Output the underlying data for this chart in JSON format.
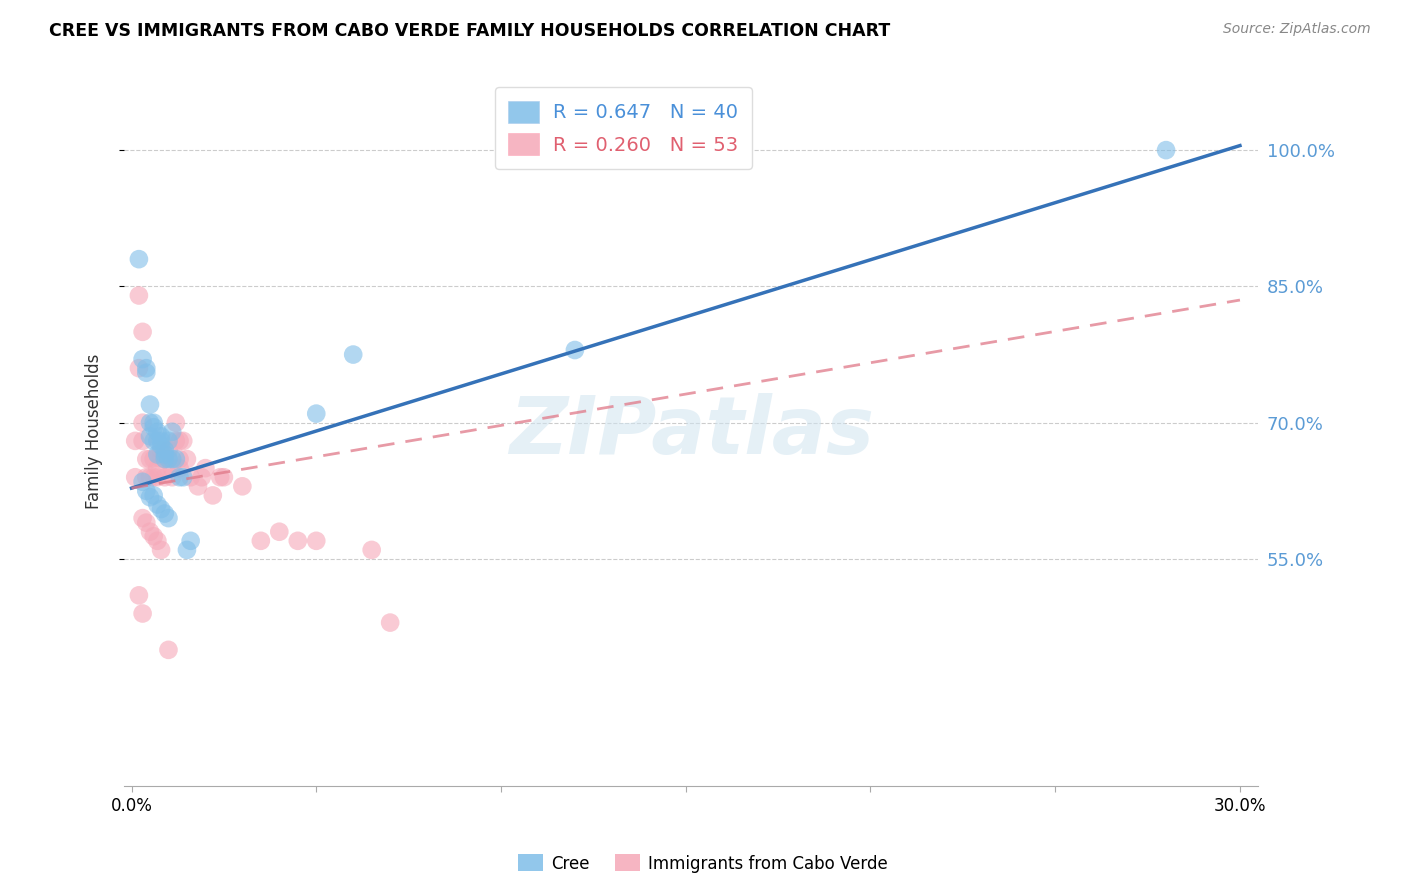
{
  "title": "CREE VS IMMIGRANTS FROM CABO VERDE FAMILY HOUSEHOLDS CORRELATION CHART",
  "source": "Source: ZipAtlas.com",
  "ylabel": "Family Households",
  "ytick_labels": [
    "55.0%",
    "70.0%",
    "85.0%",
    "100.0%"
  ],
  "ytick_values": [
    0.55,
    0.7,
    0.85,
    1.0
  ],
  "xtick_values": [
    0.0,
    0.05,
    0.1,
    0.15,
    0.2,
    0.25,
    0.3
  ],
  "xtick_labels": [
    "0.0%",
    "",
    "",
    "",
    "",
    "",
    "30.0%"
  ],
  "xmin": -0.002,
  "xmax": 0.305,
  "ymin": 0.3,
  "ymax": 1.08,
  "cree_R": 0.647,
  "cree_N": 40,
  "cabo_R": 0.26,
  "cabo_N": 53,
  "cree_color": "#7FBDE8",
  "cabo_color": "#F5A8B8",
  "cree_line_color": "#3572B8",
  "cabo_line_color": "#E07888",
  "watermark_text": "ZIPatlas",
  "cree_line_x0": 0.0,
  "cree_line_y0": 0.628,
  "cree_line_x1": 0.3,
  "cree_line_y1": 1.005,
  "cabo_line_x0": 0.0,
  "cabo_line_y0": 0.628,
  "cabo_line_x1": 0.3,
  "cabo_line_y1": 0.835,
  "cree_x": [
    0.002,
    0.003,
    0.004,
    0.004,
    0.005,
    0.005,
    0.005,
    0.006,
    0.006,
    0.006,
    0.007,
    0.007,
    0.007,
    0.008,
    0.008,
    0.008,
    0.009,
    0.009,
    0.009,
    0.01,
    0.01,
    0.011,
    0.011,
    0.012,
    0.013,
    0.014,
    0.016,
    0.05,
    0.06,
    0.12,
    0.003,
    0.004,
    0.005,
    0.006,
    0.007,
    0.008,
    0.009,
    0.01,
    0.015,
    0.28
  ],
  "cree_y": [
    0.88,
    0.77,
    0.76,
    0.755,
    0.72,
    0.7,
    0.685,
    0.7,
    0.695,
    0.68,
    0.68,
    0.665,
    0.69,
    0.685,
    0.68,
    0.675,
    0.665,
    0.67,
    0.66,
    0.66,
    0.68,
    0.66,
    0.69,
    0.66,
    0.64,
    0.64,
    0.57,
    0.71,
    0.775,
    0.78,
    0.635,
    0.625,
    0.618,
    0.62,
    0.61,
    0.605,
    0.6,
    0.595,
    0.56,
    1.0
  ],
  "cabo_x": [
    0.001,
    0.001,
    0.002,
    0.002,
    0.003,
    0.003,
    0.003,
    0.004,
    0.004,
    0.005,
    0.005,
    0.006,
    0.006,
    0.007,
    0.007,
    0.008,
    0.008,
    0.009,
    0.009,
    0.01,
    0.01,
    0.011,
    0.011,
    0.012,
    0.012,
    0.013,
    0.013,
    0.013,
    0.014,
    0.015,
    0.016,
    0.018,
    0.019,
    0.02,
    0.022,
    0.024,
    0.025,
    0.03,
    0.035,
    0.04,
    0.045,
    0.05,
    0.065,
    0.07,
    0.003,
    0.004,
    0.005,
    0.006,
    0.007,
    0.008,
    0.002,
    0.003,
    0.01
  ],
  "cabo_y": [
    0.68,
    0.64,
    0.76,
    0.84,
    0.8,
    0.7,
    0.68,
    0.66,
    0.64,
    0.66,
    0.64,
    0.64,
    0.66,
    0.64,
    0.65,
    0.66,
    0.67,
    0.66,
    0.64,
    0.67,
    0.66,
    0.65,
    0.64,
    0.68,
    0.7,
    0.68,
    0.66,
    0.65,
    0.68,
    0.66,
    0.64,
    0.63,
    0.64,
    0.65,
    0.62,
    0.64,
    0.64,
    0.63,
    0.57,
    0.58,
    0.57,
    0.57,
    0.56,
    0.48,
    0.595,
    0.59,
    0.58,
    0.575,
    0.57,
    0.56,
    0.51,
    0.49,
    0.45
  ]
}
